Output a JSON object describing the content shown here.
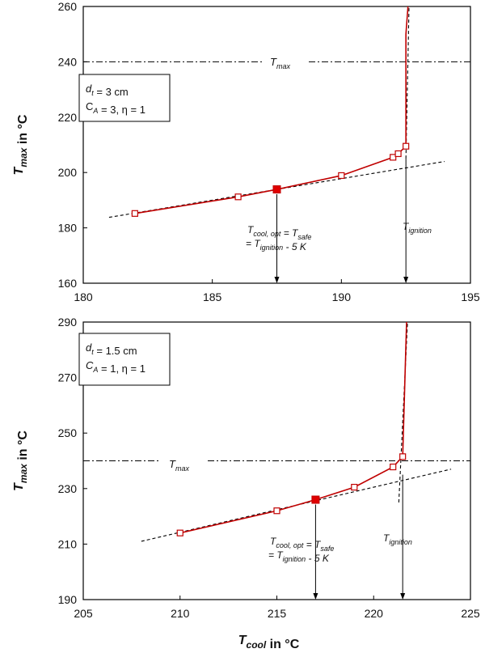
{
  "chart_data": [
    {
      "type": "line",
      "panel": "top",
      "ylabel": {
        "main": "T",
        "sub": "max",
        "rest": " in °C"
      },
      "xlim": [
        180,
        195
      ],
      "ylim": [
        160,
        260
      ],
      "xticks": [
        180,
        185,
        190,
        195
      ],
      "yticks": [
        160,
        180,
        200,
        220,
        240,
        260
      ],
      "info_box": [
        {
          "main": "d",
          "sub": "t",
          "rest": " = 3 cm"
        },
        {
          "main": "C",
          "sub": "A",
          "rest": " = 3, η = 1"
        }
      ],
      "tmax_label": {
        "main": "T",
        "sub": "max"
      },
      "tmax_value": 240,
      "series": [
        {
          "values": [
            [
              182.0,
              185.2
            ],
            [
              186.0,
              191.2
            ],
            [
              187.5,
              193.9
            ],
            [
              190.0,
              198.9
            ],
            [
              192.0,
              205.5
            ],
            [
              192.2,
              206.8
            ],
            [
              192.5,
              209.5
            ],
            [
              192.5,
              250.0
            ],
            [
              192.58,
              260.0
            ]
          ],
          "color": "#c00000"
        }
      ],
      "optimal_point": [
        187.5,
        193.9
      ],
      "tangent_line": [
        [
          181.0,
          183.8
        ],
        [
          194.0,
          204.0
        ]
      ],
      "asymptote_line": [
        [
          192.5,
          205.0
        ],
        [
          192.62,
          260.0
        ]
      ],
      "annotation_opt": [
        [
          {
            "main": "T",
            "sub": "cool, opt"
          },
          {
            "main": " = T",
            "sub": "safe"
          }
        ],
        [
          {
            "main": "= T",
            "sub": "ignition"
          },
          {
            "main": " - 5 K",
            "sub": ""
          }
        ]
      ],
      "annotation_ign": {
        "main": "T",
        "sub": "ignition"
      },
      "arrow_opt_x": 187.5,
      "arrow_ign_x": 192.5
    },
    {
      "type": "line",
      "panel": "bottom",
      "xlabel": {
        "main": "T",
        "sub": "cool",
        "rest": " in °C"
      },
      "ylabel": {
        "main": "T",
        "sub": "max",
        "rest": " in °C"
      },
      "xlim": [
        205,
        225
      ],
      "ylim": [
        190,
        290
      ],
      "xticks": [
        205,
        210,
        215,
        220,
        225
      ],
      "yticks": [
        190,
        210,
        230,
        250,
        270,
        290
      ],
      "info_box": [
        {
          "main": "d",
          "sub": "t",
          "rest": " = 1.5 cm"
        },
        {
          "main": "C",
          "sub": "A",
          "rest": " = 1, η = 1"
        }
      ],
      "tmax_label": {
        "main": "T",
        "sub": "max"
      },
      "tmax_value": 240,
      "series": [
        {
          "values": [
            [
              210.0,
              214.0
            ],
            [
              215.0,
              222.0
            ],
            [
              217.0,
              226.0
            ],
            [
              219.0,
              230.5
            ],
            [
              221.0,
              237.8
            ],
            [
              221.5,
              241.5
            ],
            [
              221.7,
              290.0
            ]
          ],
          "color": "#c00000"
        }
      ],
      "optimal_point": [
        217.0,
        226.0
      ],
      "tangent_line": [
        [
          208.0,
          211.0
        ],
        [
          224.0,
          237.0
        ]
      ],
      "asymptote_line": [
        [
          221.3,
          225.0
        ],
        [
          221.75,
          290.0
        ]
      ],
      "annotation_opt": [
        [
          {
            "main": "T",
            "sub": "cool, opt"
          },
          {
            "main": " = T",
            "sub": "safe"
          }
        ],
        [
          {
            "main": "= T",
            "sub": "ignition"
          },
          {
            "main": " - 5 K",
            "sub": ""
          }
        ]
      ],
      "annotation_ign": {
        "main": "T",
        "sub": "ignition"
      },
      "arrow_opt_x": 217.0,
      "arrow_ign_x": 221.5
    }
  ]
}
